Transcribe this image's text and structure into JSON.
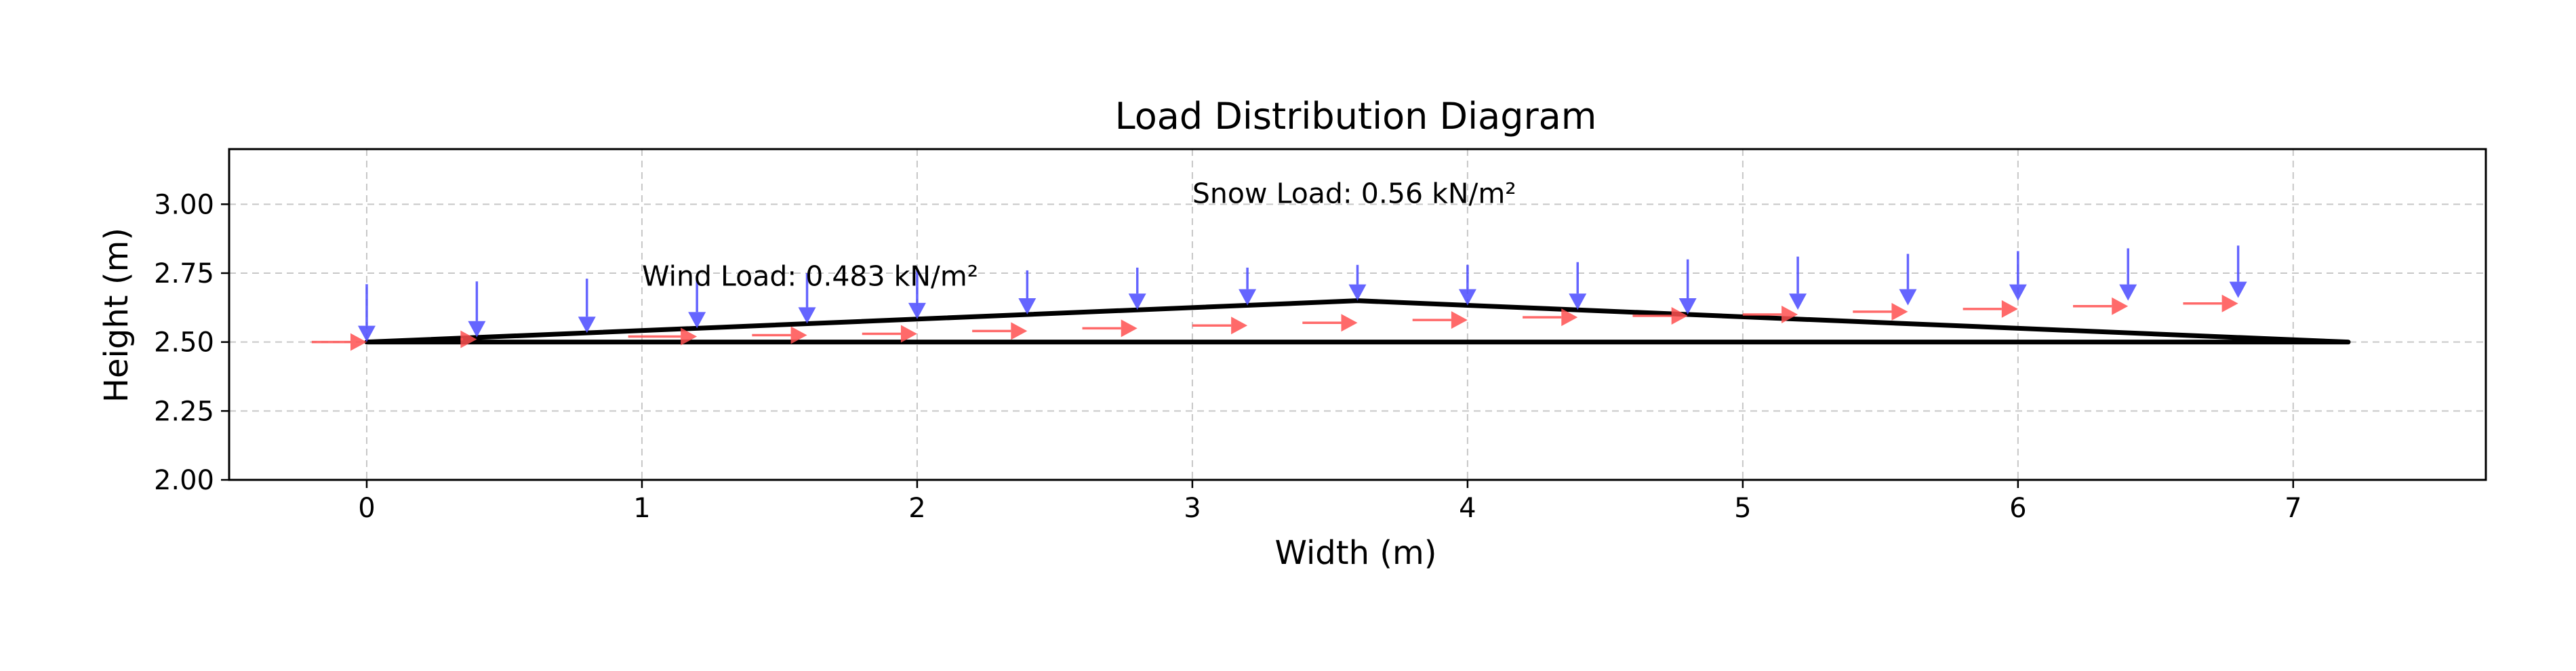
{
  "chart_data": {
    "type": "line",
    "title": "Load Distribution Diagram",
    "xlabel": "Width (m)",
    "ylabel": "Height (m)",
    "xlim": [
      -0.5,
      7.7
    ],
    "ylim": [
      2.0,
      3.2
    ],
    "xticks": [
      0,
      1,
      2,
      3,
      4,
      5,
      6,
      7
    ],
    "yticks": [
      2.0,
      2.25,
      2.5,
      2.75,
      3.0
    ],
    "ytick_labels": [
      "2.00",
      "2.25",
      "2.50",
      "2.75",
      "3.00"
    ],
    "grid": true,
    "roof_outline": {
      "color": "#000000",
      "x": [
        0,
        3.6,
        7.2,
        0
      ],
      "y": [
        2.5,
        2.65,
        2.5,
        2.5
      ]
    },
    "snow_load": {
      "label": "Snow Load: 0.56 kN/m²",
      "label_position": [
        3.0,
        3.0
      ],
      "color": "#4a4aff",
      "x": [
        0,
        0.4,
        0.8,
        1.2,
        1.6,
        2.0,
        2.4,
        2.8,
        3.2,
        3.6,
        4.0,
        4.4,
        4.8,
        5.2,
        5.6,
        6.0,
        6.4,
        6.8
      ],
      "y_start": [
        2.71,
        2.72,
        2.73,
        2.74,
        2.75,
        2.76,
        2.76,
        2.77,
        2.77,
        2.78,
        2.78,
        2.79,
        2.8,
        2.81,
        2.82,
        2.83,
        2.84,
        2.85
      ],
      "y_end": [
        2.5,
        2.517,
        2.533,
        2.55,
        2.567,
        2.583,
        2.6,
        2.617,
        2.633,
        2.65,
        2.633,
        2.617,
        2.6,
        2.617,
        2.633,
        2.65,
        2.65,
        2.66
      ]
    },
    "wind_load": {
      "label": "Wind Load: 0.483 kN/m²",
      "label_position": [
        1.0,
        2.7
      ],
      "color": "#ff5050",
      "x_start": [
        -0.2,
        0.35,
        0.95,
        1.4,
        1.8,
        2.2,
        2.6,
        3.0,
        3.4,
        3.8,
        4.2,
        4.6,
        5.0,
        5.4,
        5.8,
        6.2,
        6.6
      ],
      "x_end": [
        0,
        0.4,
        1.2,
        1.6,
        2.0,
        2.4,
        2.8,
        3.2,
        3.6,
        4.0,
        4.4,
        4.8,
        5.2,
        5.6,
        6.0,
        6.4,
        6.8
      ],
      "y": [
        2.5,
        2.51,
        2.52,
        2.525,
        2.53,
        2.54,
        2.55,
        2.56,
        2.57,
        2.58,
        2.59,
        2.595,
        2.6,
        2.61,
        2.62,
        2.63,
        2.64
      ]
    }
  }
}
